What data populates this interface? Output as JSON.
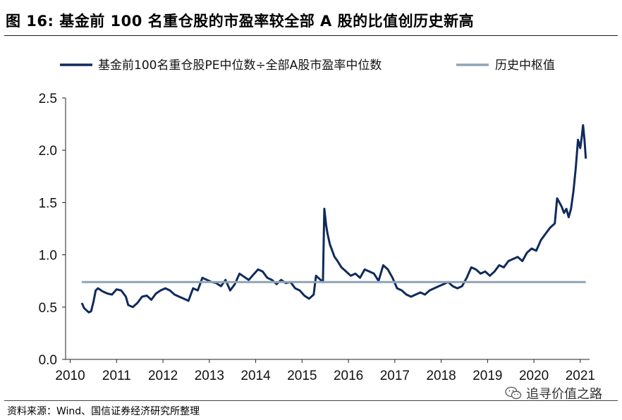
{
  "header": {
    "title": "图 16:  基金前 100 名重仓股的市盈率较全部 A 股的比值创历史新高"
  },
  "footer": {
    "source": "资料来源：Wind、国信证券经济研究所整理",
    "watermark_text": "追寻价值之路",
    "watermark_icon": "wechat-icon"
  },
  "chart_data": {
    "type": "line",
    "title": "图 16:  基金前 100 名重仓股的市盈率较全部 A 股的比值创历史新高",
    "xlabel": "",
    "ylabel": "",
    "xlim": [
      2009.9,
      2021.2
    ],
    "ylim": [
      0.0,
      2.5
    ],
    "y_ticks": [
      "0.0",
      "0.5",
      "1.0",
      "1.5",
      "2.0",
      "2.5"
    ],
    "x_ticks": [
      "2010",
      "2011",
      "2012",
      "2013",
      "2014",
      "2015",
      "2016",
      "2017",
      "2018",
      "2019",
      "2020",
      "2021"
    ],
    "grid": false,
    "legend_position": "top",
    "colors": {
      "ratio": "#0f2a5c",
      "median": "#8fa3b5"
    },
    "series": [
      {
        "name": "基金前100名重仓股PE中位数÷全部A股市盈率中位数",
        "x": [
          2010.25,
          2010.3,
          2010.35,
          2010.4,
          2010.45,
          2010.5,
          2010.55,
          2010.6,
          2010.7,
          2010.8,
          2010.9,
          2011.0,
          2011.1,
          2011.2,
          2011.25,
          2011.35,
          2011.45,
          2011.55,
          2011.65,
          2011.75,
          2011.85,
          2011.95,
          2012.05,
          2012.15,
          2012.25,
          2012.35,
          2012.45,
          2012.55,
          2012.65,
          2012.75,
          2012.8,
          2012.85,
          2012.95,
          2013.05,
          2013.15,
          2013.25,
          2013.35,
          2013.45,
          2013.55,
          2013.65,
          2013.75,
          2013.85,
          2013.95,
          2014.05,
          2014.15,
          2014.25,
          2014.35,
          2014.45,
          2014.55,
          2014.65,
          2014.75,
          2014.85,
          2014.95,
          2015.05,
          2015.15,
          2015.2,
          2015.25,
          2015.3,
          2015.35,
          2015.4,
          2015.45,
          2015.48,
          2015.52,
          2015.55,
          2015.6,
          2015.65,
          2015.7,
          2015.75,
          2015.85,
          2015.95,
          2016.05,
          2016.15,
          2016.25,
          2016.35,
          2016.45,
          2016.55,
          2016.65,
          2016.75,
          2016.85,
          2016.95,
          2017.05,
          2017.15,
          2017.25,
          2017.35,
          2017.45,
          2017.55,
          2017.65,
          2017.75,
          2017.85,
          2017.95,
          2018.05,
          2018.15,
          2018.25,
          2018.35,
          2018.45,
          2018.55,
          2018.65,
          2018.75,
          2018.85,
          2018.95,
          2019.05,
          2019.15,
          2019.25,
          2019.35,
          2019.45,
          2019.55,
          2019.65,
          2019.75,
          2019.85,
          2019.95,
          2020.05,
          2020.15,
          2020.25,
          2020.35,
          2020.45,
          2020.5,
          2020.55,
          2020.6,
          2020.65,
          2020.7,
          2020.75,
          2020.8,
          2020.85,
          2020.9,
          2020.95,
          2021.0,
          2021.03,
          2021.06,
          2021.09,
          2021.12
        ],
        "values": [
          0.54,
          0.49,
          0.47,
          0.45,
          0.46,
          0.55,
          0.66,
          0.68,
          0.65,
          0.63,
          0.62,
          0.67,
          0.66,
          0.6,
          0.52,
          0.5,
          0.54,
          0.6,
          0.61,
          0.57,
          0.63,
          0.66,
          0.68,
          0.66,
          0.62,
          0.6,
          0.58,
          0.56,
          0.68,
          0.66,
          0.72,
          0.78,
          0.76,
          0.74,
          0.73,
          0.7,
          0.76,
          0.66,
          0.72,
          0.82,
          0.79,
          0.76,
          0.81,
          0.86,
          0.84,
          0.78,
          0.76,
          0.72,
          0.76,
          0.73,
          0.74,
          0.68,
          0.66,
          0.61,
          0.58,
          0.6,
          0.62,
          0.8,
          0.78,
          0.76,
          0.74,
          1.44,
          1.28,
          1.2,
          1.1,
          1.04,
          0.98,
          0.95,
          0.88,
          0.84,
          0.8,
          0.82,
          0.78,
          0.86,
          0.84,
          0.82,
          0.75,
          0.9,
          0.86,
          0.78,
          0.68,
          0.66,
          0.62,
          0.6,
          0.62,
          0.64,
          0.62,
          0.66,
          0.68,
          0.7,
          0.72,
          0.74,
          0.7,
          0.68,
          0.7,
          0.78,
          0.88,
          0.86,
          0.82,
          0.84,
          0.8,
          0.84,
          0.9,
          0.88,
          0.94,
          0.96,
          0.98,
          0.94,
          1.02,
          1.06,
          1.04,
          1.14,
          1.2,
          1.26,
          1.3,
          1.54,
          1.5,
          1.46,
          1.4,
          1.44,
          1.36,
          1.44,
          1.6,
          1.82,
          2.1,
          2.02,
          2.12,
          2.24,
          2.1,
          1.92
        ]
      },
      {
        "name": "历史中枢值",
        "x": [
          2010.25,
          2021.12
        ],
        "values": [
          0.74,
          0.74
        ]
      }
    ]
  }
}
